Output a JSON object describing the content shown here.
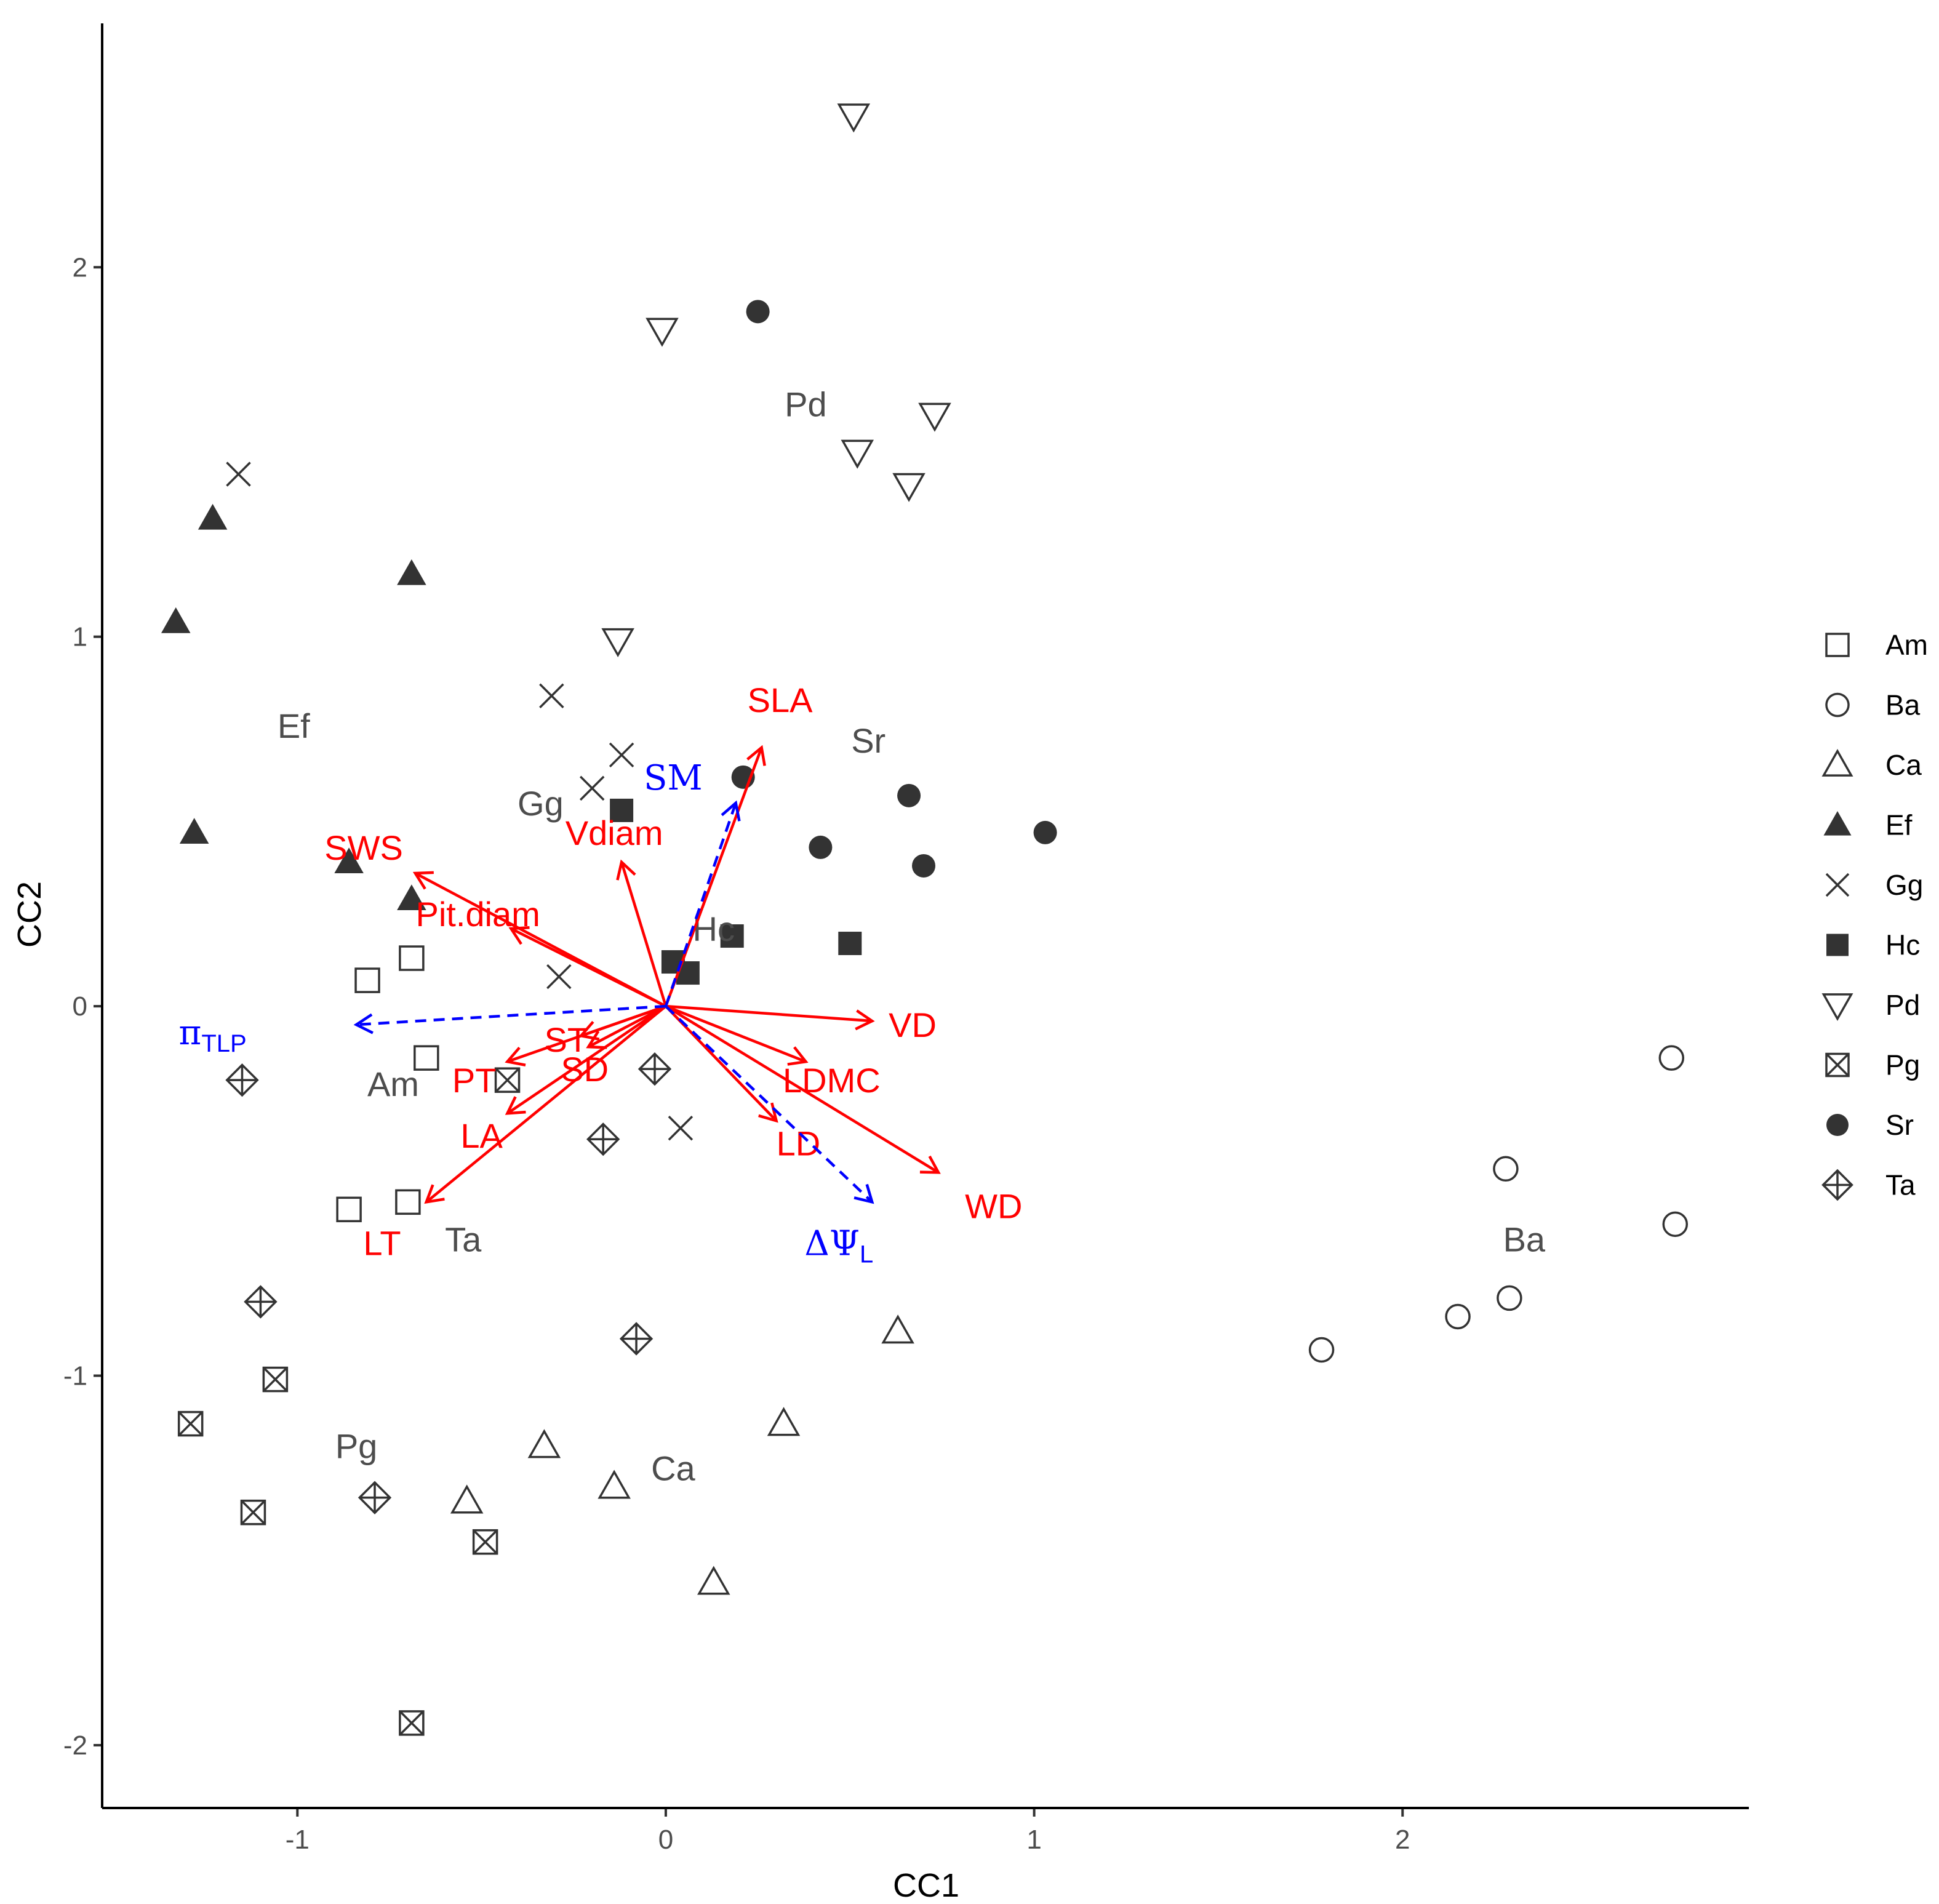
{
  "chart_data": {
    "type": "scatter",
    "title": "",
    "xlabel": "CC1",
    "ylabel": "CC2",
    "xlim": [
      -1.53,
      2.94
    ],
    "ylim": [
      -2.17,
      2.66
    ],
    "xticks": [
      {
        "value": -1,
        "label": "-1"
      },
      {
        "value": 0,
        "label": "0"
      },
      {
        "value": 1,
        "label": "1"
      },
      {
        "value": 2,
        "label": "2"
      }
    ],
    "yticks": [
      {
        "value": -2,
        "label": "-2"
      },
      {
        "value": -1,
        "label": "-1"
      },
      {
        "value": 0,
        "label": "0"
      },
      {
        "value": 1,
        "label": "1"
      },
      {
        "value": 2,
        "label": "2"
      }
    ],
    "grid": false,
    "legend_position": "right",
    "colors": {
      "points": "#333333",
      "group_labels": "#4d4d4d",
      "trait_arrows": "#ff0000",
      "hydraulic_arrows": "#0000ff",
      "axis": "#000000",
      "tick_labels": "#4d4d4d"
    },
    "legend": [
      {
        "label": "Am",
        "shape": "square-open"
      },
      {
        "label": "Ba",
        "shape": "circle-open"
      },
      {
        "label": "Ca",
        "shape": "triangle-open"
      },
      {
        "label": "Ef",
        "shape": "triangle-filled"
      },
      {
        "label": "Gg",
        "shape": "cross"
      },
      {
        "label": "Hc",
        "shape": "square-filled"
      },
      {
        "label": "Pd",
        "shape": "triangle-down-open"
      },
      {
        "label": "Pg",
        "shape": "square-x"
      },
      {
        "label": "Sr",
        "shape": "circle-filled"
      },
      {
        "label": "Ta",
        "shape": "diamond-plus"
      }
    ],
    "series": [
      {
        "name": "Am",
        "points": [
          [
            -0.81,
            0.07
          ],
          [
            -0.69,
            0.13
          ],
          [
            -0.65,
            -0.14
          ],
          [
            -0.86,
            -0.55
          ],
          [
            -0.7,
            -0.53
          ]
        ]
      },
      {
        "name": "Ba",
        "points": [
          [
            2.73,
            -0.14
          ],
          [
            2.28,
            -0.44
          ],
          [
            2.74,
            -0.59
          ],
          [
            2.29,
            -0.79
          ],
          [
            2.15,
            -0.84
          ],
          [
            1.78,
            -0.93
          ]
        ]
      },
      {
        "name": "Ca",
        "points": [
          [
            0.63,
            -0.88
          ],
          [
            0.32,
            -1.13
          ],
          [
            -0.33,
            -1.19
          ],
          [
            -0.14,
            -1.3
          ],
          [
            -0.54,
            -1.34
          ],
          [
            0.13,
            -1.56
          ]
        ]
      },
      {
        "name": "Ef",
        "points": [
          [
            -1.23,
            1.32
          ],
          [
            -0.69,
            1.17
          ],
          [
            -1.33,
            1.04
          ],
          [
            -1.28,
            0.47
          ],
          [
            -0.86,
            0.39
          ],
          [
            -0.69,
            0.29
          ]
        ]
      },
      {
        "name": "Gg",
        "points": [
          [
            -1.16,
            1.44
          ],
          [
            -0.31,
            0.84
          ],
          [
            -0.12,
            0.68
          ],
          [
            -0.2,
            0.59
          ],
          [
            -0.29,
            0.08
          ],
          [
            0.04,
            -0.33
          ]
        ]
      },
      {
        "name": "Hc",
        "points": [
          [
            -0.12,
            0.53
          ],
          [
            0.18,
            0.19
          ],
          [
            0.5,
            0.17
          ],
          [
            0.02,
            0.12
          ],
          [
            0.06,
            0.09
          ]
        ]
      },
      {
        "name": "Pd",
        "points": [
          [
            0.51,
            2.41
          ],
          [
            -0.01,
            1.83
          ],
          [
            0.73,
            1.6
          ],
          [
            0.52,
            1.5
          ],
          [
            0.66,
            1.41
          ],
          [
            -0.13,
            0.99
          ]
        ]
      },
      {
        "name": "Pg",
        "points": [
          [
            -0.43,
            -0.2
          ],
          [
            -1.06,
            -1.01
          ],
          [
            -1.29,
            -1.13
          ],
          [
            -1.12,
            -1.37
          ],
          [
            -0.49,
            -1.45
          ],
          [
            -0.69,
            -1.94
          ]
        ]
      },
      {
        "name": "Sr",
        "points": [
          [
            0.25,
            1.88
          ],
          [
            0.21,
            0.62
          ],
          [
            0.66,
            0.57
          ],
          [
            1.03,
            0.47
          ],
          [
            0.42,
            0.43
          ],
          [
            0.7,
            0.38
          ]
        ]
      },
      {
        "name": "Ta",
        "points": [
          [
            -1.15,
            -0.2
          ],
          [
            -0.03,
            -0.17
          ],
          [
            -0.17,
            -0.36
          ],
          [
            -1.1,
            -0.8
          ],
          [
            -0.08,
            -0.9
          ],
          [
            -0.79,
            -1.33
          ]
        ]
      }
    ],
    "group_labels": [
      {
        "text": "Pd",
        "x": 0.38,
        "y": 1.63
      },
      {
        "text": "Ef",
        "x": -1.01,
        "y": 0.76
      },
      {
        "text": "Sr",
        "x": 0.55,
        "y": 0.72
      },
      {
        "text": "Gg",
        "x": -0.34,
        "y": 0.55
      },
      {
        "text": "Hc",
        "x": 0.13,
        "y": 0.21
      },
      {
        "text": "Am",
        "x": -0.74,
        "y": -0.21
      },
      {
        "text": "Ta",
        "x": -0.55,
        "y": -0.63
      },
      {
        "text": "Ba",
        "x": 2.33,
        "y": -0.63
      },
      {
        "text": "Pg",
        "x": -0.84,
        "y": -1.19
      },
      {
        "text": "Ca",
        "x": 0.02,
        "y": -1.25
      }
    ],
    "trait_vectors": [
      {
        "label": "SLA",
        "x": 0.26,
        "y": 0.7,
        "label_x": 0.31,
        "label_y": 0.83
      },
      {
        "label": "Vdiam",
        "x": -0.12,
        "y": 0.39,
        "label_x": -0.14,
        "label_y": 0.47
      },
      {
        "label": "SWS",
        "x": -0.68,
        "y": 0.36,
        "label_x": -0.82,
        "label_y": 0.43
      },
      {
        "label": "Pit.diam",
        "x": -0.42,
        "y": 0.21,
        "label_x": -0.51,
        "label_y": 0.25
      },
      {
        "label": "VD",
        "x": 0.56,
        "y": -0.04,
        "label_x": 0.67,
        "label_y": -0.05
      },
      {
        "label": "ST",
        "x": -0.23,
        "y": -0.08,
        "label_x": -0.27,
        "label_y": -0.09
      },
      {
        "label": "SD",
        "x": -0.21,
        "y": -0.11,
        "label_x": -0.22,
        "label_y": -0.17
      },
      {
        "label": "PT",
        "x": -0.43,
        "y": -0.15,
        "label_x": -0.52,
        "label_y": -0.2
      },
      {
        "label": "LDMC",
        "x": 0.38,
        "y": -0.15,
        "label_x": 0.45,
        "label_y": -0.2
      },
      {
        "label": "LA",
        "x": -0.43,
        "y": -0.29,
        "label_x": -0.5,
        "label_y": -0.35
      },
      {
        "label": "LD",
        "x": 0.3,
        "y": -0.31,
        "label_x": 0.36,
        "label_y": -0.37
      },
      {
        "label": "WD",
        "x": 0.74,
        "y": -0.45,
        "label_x": 0.89,
        "label_y": -0.54
      },
      {
        "label": "LT",
        "x": -0.65,
        "y": -0.53,
        "label_x": -0.77,
        "label_y": -0.64
      }
    ],
    "hydraulic_vectors": [
      {
        "label": "SM",
        "x": 0.19,
        "y": 0.55,
        "label_x": 0.02,
        "label_y": 0.62
      },
      {
        "label": "π",
        "subscript": "TLP",
        "x": -0.84,
        "y": -0.05,
        "label_x": -1.23,
        "label_y": -0.07
      },
      {
        "label": "ΔΨ",
        "subscript": "L",
        "x": 0.56,
        "y": -0.53,
        "label_x": 0.47,
        "label_y": -0.64
      }
    ]
  }
}
